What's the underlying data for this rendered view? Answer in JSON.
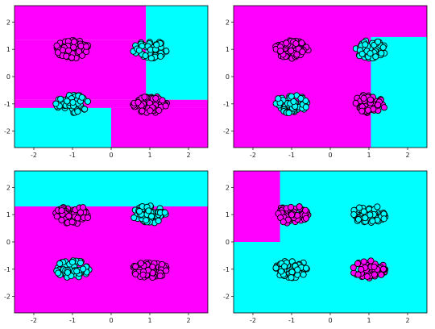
{
  "chart_data": [
    {
      "type": "scatter",
      "title": "",
      "xlim": [
        -2.5,
        2.5
      ],
      "ylim": [
        -2.6,
        2.6
      ],
      "xticks": [
        -2,
        -1,
        0,
        1,
        2
      ],
      "yticks": [
        -2,
        -1,
        0,
        1,
        2
      ],
      "grid": false,
      "regions": [
        {
          "color": "magenta",
          "x0": -2.5,
          "x1": 0.9,
          "y0": 1.35,
          "y1": 2.6
        },
        {
          "color": "cyan",
          "x0": 0.9,
          "x1": 2.5,
          "y0": -0.85,
          "y1": 2.6
        },
        {
          "color": "magenta",
          "x0": -2.5,
          "x1": 0.9,
          "y0": -0.85,
          "y1": 1.35
        },
        {
          "color": "magenta",
          "x0": -2.5,
          "x1": 2.5,
          "y0": -1.15,
          "y1": -0.85
        },
        {
          "color": "cyan",
          "x0": -2.5,
          "x1": 0,
          "y0": -2.6,
          "y1": -1.15
        },
        {
          "color": "magenta",
          "x0": 0,
          "x1": 2.5,
          "y0": -2.6,
          "y1": -1.15
        }
      ],
      "clusters": [
        {
          "color": "magenta",
          "cx": -1,
          "cy": 1
        },
        {
          "color": "cyan",
          "cx": 1,
          "cy": 1
        },
        {
          "color": "cyan",
          "cx": -1,
          "cy": -1
        },
        {
          "color": "magenta",
          "cx": 1,
          "cy": -1
        }
      ]
    },
    {
      "type": "scatter",
      "title": "",
      "xlim": [
        -2.5,
        2.5
      ],
      "ylim": [
        -2.6,
        2.6
      ],
      "xticks": [
        -2,
        -1,
        0,
        1,
        2
      ],
      "yticks": [
        -2,
        -1,
        0,
        1,
        2
      ],
      "grid": false,
      "regions": [
        {
          "color": "magenta",
          "x0": -2.5,
          "x1": 2.5,
          "y0": -2.6,
          "y1": 2.6
        },
        {
          "color": "cyan",
          "x0": 1.05,
          "x1": 2.5,
          "y0": -2.6,
          "y1": 1.45
        }
      ],
      "clusters": [
        {
          "color": "magenta",
          "cx": -1,
          "cy": 1
        },
        {
          "color": "cyan",
          "cx": 1,
          "cy": 1
        },
        {
          "color": "cyan",
          "cx": -1,
          "cy": -1
        },
        {
          "color": "magenta",
          "cx": 1,
          "cy": -1
        }
      ]
    },
    {
      "type": "scatter",
      "title": "",
      "xlim": [
        -2.5,
        2.5
      ],
      "ylim": [
        -2.6,
        2.6
      ],
      "xticks": [
        -2,
        -1,
        0,
        1,
        2
      ],
      "yticks": [
        -2,
        -1,
        0,
        1,
        2
      ],
      "grid": false,
      "regions": [
        {
          "color": "magenta",
          "x0": -2.5,
          "x1": 2.5,
          "y0": -2.6,
          "y1": 2.6
        },
        {
          "color": "cyan",
          "x0": -2.5,
          "x1": 2.5,
          "y0": 1.3,
          "y1": 2.6
        }
      ],
      "clusters": [
        {
          "color": "magenta",
          "cx": -1,
          "cy": 1
        },
        {
          "color": "cyan",
          "cx": 1,
          "cy": 1
        },
        {
          "color": "cyan",
          "cx": -1,
          "cy": -1
        },
        {
          "color": "magenta",
          "cx": 1,
          "cy": -1
        }
      ]
    },
    {
      "type": "scatter",
      "title": "",
      "xlim": [
        -2.5,
        2.5
      ],
      "ylim": [
        -2.6,
        2.6
      ],
      "xticks": [
        -2,
        -1,
        0,
        1,
        2
      ],
      "yticks": [
        -2,
        -1,
        0,
        1,
        2
      ],
      "grid": false,
      "regions": [
        {
          "color": "cyan",
          "x0": -2.5,
          "x1": 2.5,
          "y0": -2.6,
          "y1": 2.6
        },
        {
          "color": "magenta",
          "x0": -2.5,
          "x1": -1.3,
          "y0": 0.0,
          "y1": 2.6
        }
      ],
      "clusters": [
        {
          "color": "magenta",
          "cx": -1,
          "cy": 1
        },
        {
          "color": "cyan",
          "cx": 1,
          "cy": 1
        },
        {
          "color": "cyan",
          "cx": -1,
          "cy": -1
        },
        {
          "color": "magenta",
          "cx": 1,
          "cy": -1
        }
      ]
    }
  ],
  "colors": {
    "magenta": "#ff00ff",
    "cyan": "#00ffff",
    "marker_edge": "#000000"
  }
}
